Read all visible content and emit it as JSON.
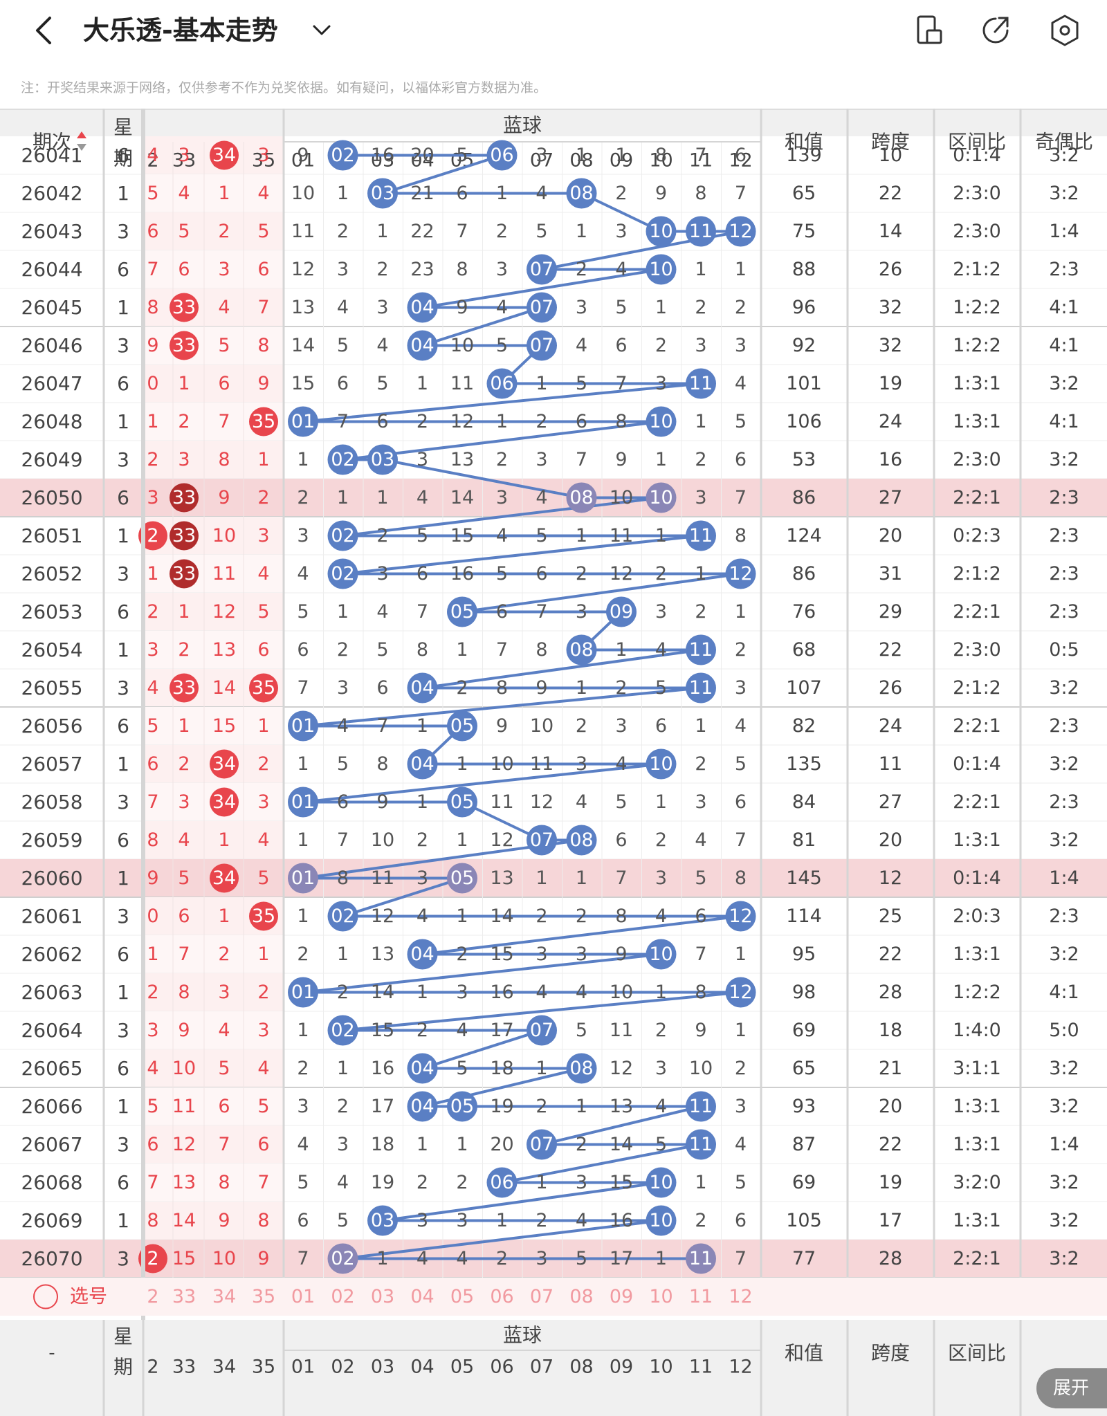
{
  "header": {
    "title": "大乐透-基本走势",
    "note": "注：开奖结果来源于网络，仅供参考不作为兑奖依据。如有疑问，以福体彩官方数据为准。",
    "icons": [
      "back-icon",
      "chevron-down-icon",
      "phone-rotate-icon",
      "share-icon",
      "settings-icon"
    ]
  },
  "table": {
    "h_period": "期次",
    "h_week": "星期",
    "h_blue": "蓝球",
    "h_sum": "和值",
    "h_span": "跨度",
    "h_zone": "区间比",
    "h_oe": "奇偶比",
    "h_week_short": "期",
    "front_partial_cols": [
      "2",
      "33",
      "34",
      "35"
    ],
    "blue_cols": [
      "01",
      "02",
      "03",
      "04",
      "05",
      "06",
      "07",
      "08",
      "09",
      "10",
      "11",
      "12"
    ],
    "rows": [
      {
        "p": "26041",
        "w": "6",
        "f": [
          "4",
          "3",
          "34",
          "3"
        ],
        "fb": [
          0,
          0,
          1,
          0
        ],
        "b": [
          "9",
          "02",
          "16",
          "20",
          "5",
          "06",
          "3",
          "1",
          "1",
          "8",
          "7",
          "6"
        ],
        "s": "139",
        "k": "10",
        "z": "0:1:4",
        "o": "3:2"
      },
      {
        "p": "26042",
        "w": "1",
        "f": [
          "5",
          "4",
          "1",
          "4"
        ],
        "fb": [
          0,
          0,
          0,
          0
        ],
        "b": [
          "10",
          "1",
          "03",
          "21",
          "6",
          "1",
          "4",
          "08",
          "2",
          "9",
          "8",
          "7"
        ],
        "s": "65",
        "k": "22",
        "z": "2:3:0",
        "o": "3:2"
      },
      {
        "p": "26043",
        "w": "3",
        "f": [
          "6",
          "5",
          "2",
          "5"
        ],
        "fb": [
          0,
          0,
          0,
          0
        ],
        "b": [
          "11",
          "2",
          "1",
          "22",
          "7",
          "2",
          "5",
          "1",
          "3",
          "10",
          "11",
          "12"
        ],
        "s": "75",
        "k": "14",
        "z": "2:3:0",
        "o": "1:4"
      },
      {
        "p": "26044",
        "w": "6",
        "f": [
          "7",
          "6",
          "3",
          "6"
        ],
        "fb": [
          0,
          0,
          0,
          0
        ],
        "b": [
          "12",
          "3",
          "2",
          "23",
          "8",
          "3",
          "07",
          "2",
          "4",
          "10",
          "1",
          "1"
        ],
        "s": "88",
        "k": "26",
        "z": "2:1:2",
        "o": "2:3"
      },
      {
        "p": "26045",
        "w": "1",
        "f": [
          "8",
          "33",
          "4",
          "7"
        ],
        "fb": [
          0,
          1,
          0,
          0
        ],
        "b": [
          "13",
          "4",
          "3",
          "04",
          "9",
          "4",
          "07",
          "3",
          "5",
          "1",
          "2",
          "2"
        ],
        "s": "96",
        "k": "32",
        "z": "1:2:2",
        "o": "4:1"
      },
      {
        "p": "26046",
        "w": "3",
        "f": [
          "9",
          "33",
          "5",
          "8"
        ],
        "fb": [
          0,
          1,
          0,
          0
        ],
        "b": [
          "14",
          "5",
          "4",
          "04",
          "10",
          "5",
          "07",
          "4",
          "6",
          "2",
          "3",
          "3"
        ],
        "s": "92",
        "k": "32",
        "z": "1:2:2",
        "o": "4:1"
      },
      {
        "p": "26047",
        "w": "6",
        "f": [
          "0",
          "1",
          "6",
          "9"
        ],
        "fb": [
          0,
          0,
          0,
          0
        ],
        "b": [
          "15",
          "6",
          "5",
          "1",
          "11",
          "06",
          "1",
          "5",
          "7",
          "3",
          "11",
          "4"
        ],
        "s": "101",
        "k": "19",
        "z": "1:3:1",
        "o": "3:2"
      },
      {
        "p": "26048",
        "w": "1",
        "f": [
          "1",
          "2",
          "7",
          "35"
        ],
        "fb": [
          0,
          0,
          0,
          1
        ],
        "b": [
          "01",
          "7",
          "6",
          "2",
          "12",
          "1",
          "2",
          "6",
          "8",
          "10",
          "1",
          "5"
        ],
        "s": "106",
        "k": "24",
        "z": "1:3:1",
        "o": "4:1"
      },
      {
        "p": "26049",
        "w": "3",
        "f": [
          "2",
          "3",
          "8",
          "1"
        ],
        "fb": [
          0,
          0,
          0,
          0
        ],
        "b": [
          "1",
          "02",
          "03",
          "3",
          "13",
          "2",
          "3",
          "7",
          "9",
          "1",
          "2",
          "6"
        ],
        "s": "53",
        "k": "16",
        "z": "2:3:0",
        "o": "3:2"
      },
      {
        "p": "26050",
        "w": "6",
        "f": [
          "3",
          "33",
          "9",
          "2"
        ],
        "fb": [
          0,
          2,
          0,
          0
        ],
        "b": [
          "2",
          "1",
          "1",
          "4",
          "14",
          "3",
          "4",
          "08",
          "10",
          "10",
          "3",
          "7"
        ],
        "s": "86",
        "k": "27",
        "z": "2:2:1",
        "o": "2:3"
      },
      {
        "p": "26051",
        "w": "1",
        "f": [
          "2",
          "33",
          "10",
          "3"
        ],
        "fb": [
          1,
          2,
          0,
          0
        ],
        "b": [
          "3",
          "02",
          "2",
          "5",
          "15",
          "4",
          "5",
          "1",
          "11",
          "1",
          "11",
          "8"
        ],
        "s": "124",
        "k": "20",
        "z": "0:2:3",
        "o": "2:3"
      },
      {
        "p": "26052",
        "w": "3",
        "f": [
          "1",
          "33",
          "11",
          "4"
        ],
        "fb": [
          0,
          2,
          0,
          0
        ],
        "b": [
          "4",
          "02",
          "3",
          "6",
          "16",
          "5",
          "6",
          "2",
          "12",
          "2",
          "1",
          "12"
        ],
        "s": "86",
        "k": "31",
        "z": "2:1:2",
        "o": "2:3"
      },
      {
        "p": "26053",
        "w": "6",
        "f": [
          "2",
          "1",
          "12",
          "5"
        ],
        "fb": [
          0,
          0,
          0,
          0
        ],
        "b": [
          "5",
          "1",
          "4",
          "7",
          "05",
          "6",
          "7",
          "3",
          "09",
          "3",
          "2",
          "1"
        ],
        "s": "76",
        "k": "29",
        "z": "2:2:1",
        "o": "2:3"
      },
      {
        "p": "26054",
        "w": "1",
        "f": [
          "3",
          "2",
          "13",
          "6"
        ],
        "fb": [
          0,
          0,
          0,
          0
        ],
        "b": [
          "6",
          "2",
          "5",
          "8",
          "1",
          "7",
          "8",
          "08",
          "1",
          "4",
          "11",
          "2"
        ],
        "s": "68",
        "k": "22",
        "z": "2:3:0",
        "o": "0:5"
      },
      {
        "p": "26055",
        "w": "3",
        "f": [
          "4",
          "33",
          "14",
          "35"
        ],
        "fb": [
          0,
          1,
          0,
          1
        ],
        "b": [
          "7",
          "3",
          "6",
          "04",
          "2",
          "8",
          "9",
          "1",
          "2",
          "5",
          "11",
          "3"
        ],
        "s": "107",
        "k": "26",
        "z": "2:1:2",
        "o": "3:2"
      },
      {
        "p": "26056",
        "w": "6",
        "f": [
          "5",
          "1",
          "15",
          "1"
        ],
        "fb": [
          0,
          0,
          0,
          0
        ],
        "b": [
          "01",
          "4",
          "7",
          "1",
          "05",
          "9",
          "10",
          "2",
          "3",
          "6",
          "1",
          "4"
        ],
        "s": "82",
        "k": "24",
        "z": "2:2:1",
        "o": "2:3"
      },
      {
        "p": "26057",
        "w": "1",
        "f": [
          "6",
          "2",
          "34",
          "2"
        ],
        "fb": [
          0,
          0,
          1,
          0
        ],
        "b": [
          "1",
          "5",
          "8",
          "04",
          "1",
          "10",
          "11",
          "3",
          "4",
          "10",
          "2",
          "5"
        ],
        "s": "135",
        "k": "11",
        "z": "0:1:4",
        "o": "3:2"
      },
      {
        "p": "26058",
        "w": "3",
        "f": [
          "7",
          "3",
          "34",
          "3"
        ],
        "fb": [
          0,
          0,
          1,
          0
        ],
        "b": [
          "01",
          "6",
          "9",
          "1",
          "05",
          "11",
          "12",
          "4",
          "5",
          "1",
          "3",
          "6"
        ],
        "s": "84",
        "k": "27",
        "z": "2:2:1",
        "o": "2:3"
      },
      {
        "p": "26059",
        "w": "6",
        "f": [
          "8",
          "4",
          "1",
          "4"
        ],
        "fb": [
          0,
          0,
          0,
          0
        ],
        "b": [
          "1",
          "7",
          "10",
          "2",
          "1",
          "12",
          "07",
          "08",
          "6",
          "2",
          "4",
          "7"
        ],
        "s": "81",
        "k": "20",
        "z": "1:3:1",
        "o": "3:2"
      },
      {
        "p": "26060",
        "w": "1",
        "f": [
          "9",
          "5",
          "34",
          "5"
        ],
        "fb": [
          0,
          0,
          1,
          0
        ],
        "b": [
          "01",
          "8",
          "11",
          "3",
          "05",
          "13",
          "1",
          "1",
          "7",
          "3",
          "5",
          "8"
        ],
        "s": "145",
        "k": "12",
        "z": "0:1:4",
        "o": "1:4"
      },
      {
        "p": "26061",
        "w": "3",
        "f": [
          "0",
          "6",
          "1",
          "35"
        ],
        "fb": [
          0,
          0,
          0,
          1
        ],
        "b": [
          "1",
          "02",
          "12",
          "4",
          "1",
          "14",
          "2",
          "2",
          "8",
          "4",
          "6",
          "12"
        ],
        "s": "114",
        "k": "25",
        "z": "2:0:3",
        "o": "2:3"
      },
      {
        "p": "26062",
        "w": "6",
        "f": [
          "1",
          "7",
          "2",
          "1"
        ],
        "fb": [
          0,
          0,
          0,
          0
        ],
        "b": [
          "2",
          "1",
          "13",
          "04",
          "2",
          "15",
          "3",
          "3",
          "9",
          "10",
          "7",
          "1"
        ],
        "s": "95",
        "k": "22",
        "z": "1:3:1",
        "o": "3:2"
      },
      {
        "p": "26063",
        "w": "1",
        "f": [
          "2",
          "8",
          "3",
          "2"
        ],
        "fb": [
          0,
          0,
          0,
          0
        ],
        "b": [
          "01",
          "2",
          "14",
          "1",
          "3",
          "16",
          "4",
          "4",
          "10",
          "1",
          "8",
          "12"
        ],
        "s": "98",
        "k": "28",
        "z": "1:2:2",
        "o": "4:1"
      },
      {
        "p": "26064",
        "w": "3",
        "f": [
          "3",
          "9",
          "4",
          "3"
        ],
        "fb": [
          0,
          0,
          0,
          0
        ],
        "b": [
          "1",
          "02",
          "15",
          "2",
          "4",
          "17",
          "07",
          "5",
          "11",
          "2",
          "9",
          "1"
        ],
        "s": "69",
        "k": "18",
        "z": "1:4:0",
        "o": "5:0"
      },
      {
        "p": "26065",
        "w": "6",
        "f": [
          "4",
          "10",
          "5",
          "4"
        ],
        "fb": [
          0,
          0,
          0,
          0
        ],
        "b": [
          "2",
          "1",
          "16",
          "04",
          "5",
          "18",
          "1",
          "08",
          "12",
          "3",
          "10",
          "2"
        ],
        "s": "65",
        "k": "21",
        "z": "3:1:1",
        "o": "3:2"
      },
      {
        "p": "26066",
        "w": "1",
        "f": [
          "5",
          "11",
          "6",
          "5"
        ],
        "fb": [
          0,
          0,
          0,
          0
        ],
        "b": [
          "3",
          "2",
          "17",
          "04",
          "05",
          "19",
          "2",
          "1",
          "13",
          "4",
          "11",
          "3"
        ],
        "s": "93",
        "k": "20",
        "z": "1:3:1",
        "o": "3:2"
      },
      {
        "p": "26067",
        "w": "3",
        "f": [
          "6",
          "12",
          "7",
          "6"
        ],
        "fb": [
          0,
          0,
          0,
          0
        ],
        "b": [
          "4",
          "3",
          "18",
          "1",
          "1",
          "20",
          "07",
          "2",
          "14",
          "5",
          "11",
          "4"
        ],
        "s": "87",
        "k": "22",
        "z": "1:3:1",
        "o": "1:4"
      },
      {
        "p": "26068",
        "w": "6",
        "f": [
          "7",
          "13",
          "8",
          "7"
        ],
        "fb": [
          0,
          0,
          0,
          0
        ],
        "b": [
          "5",
          "4",
          "19",
          "2",
          "2",
          "06",
          "1",
          "3",
          "15",
          "10",
          "1",
          "5"
        ],
        "s": "69",
        "k": "19",
        "z": "3:2:0",
        "o": "3:2"
      },
      {
        "p": "26069",
        "w": "1",
        "f": [
          "8",
          "14",
          "9",
          "8"
        ],
        "fb": [
          0,
          0,
          0,
          0
        ],
        "b": [
          "6",
          "5",
          "03",
          "3",
          "3",
          "1",
          "2",
          "4",
          "16",
          "10",
          "2",
          "6"
        ],
        "s": "105",
        "k": "17",
        "z": "1:3:1",
        "o": "3:2"
      },
      {
        "p": "26070",
        "w": "3",
        "f": [
          "2",
          "15",
          "10",
          "9"
        ],
        "fb": [
          1,
          0,
          0,
          0
        ],
        "b": [
          "7",
          "02",
          "1",
          "4",
          "4",
          "2",
          "3",
          "5",
          "17",
          "1",
          "11",
          "7"
        ],
        "s": "77",
        "k": "28",
        "z": "2:2:1",
        "o": "3:2"
      }
    ],
    "select_label": "选号",
    "footer_period": "-"
  },
  "expand_label": "展开",
  "colors": {
    "red": "#e8454c",
    "darkred": "#b02c2c",
    "blue": "#5a7fc4",
    "purple": "#8a86b6",
    "headerbg": "#f0f0f0",
    "highlight": "#f6d6d8"
  }
}
